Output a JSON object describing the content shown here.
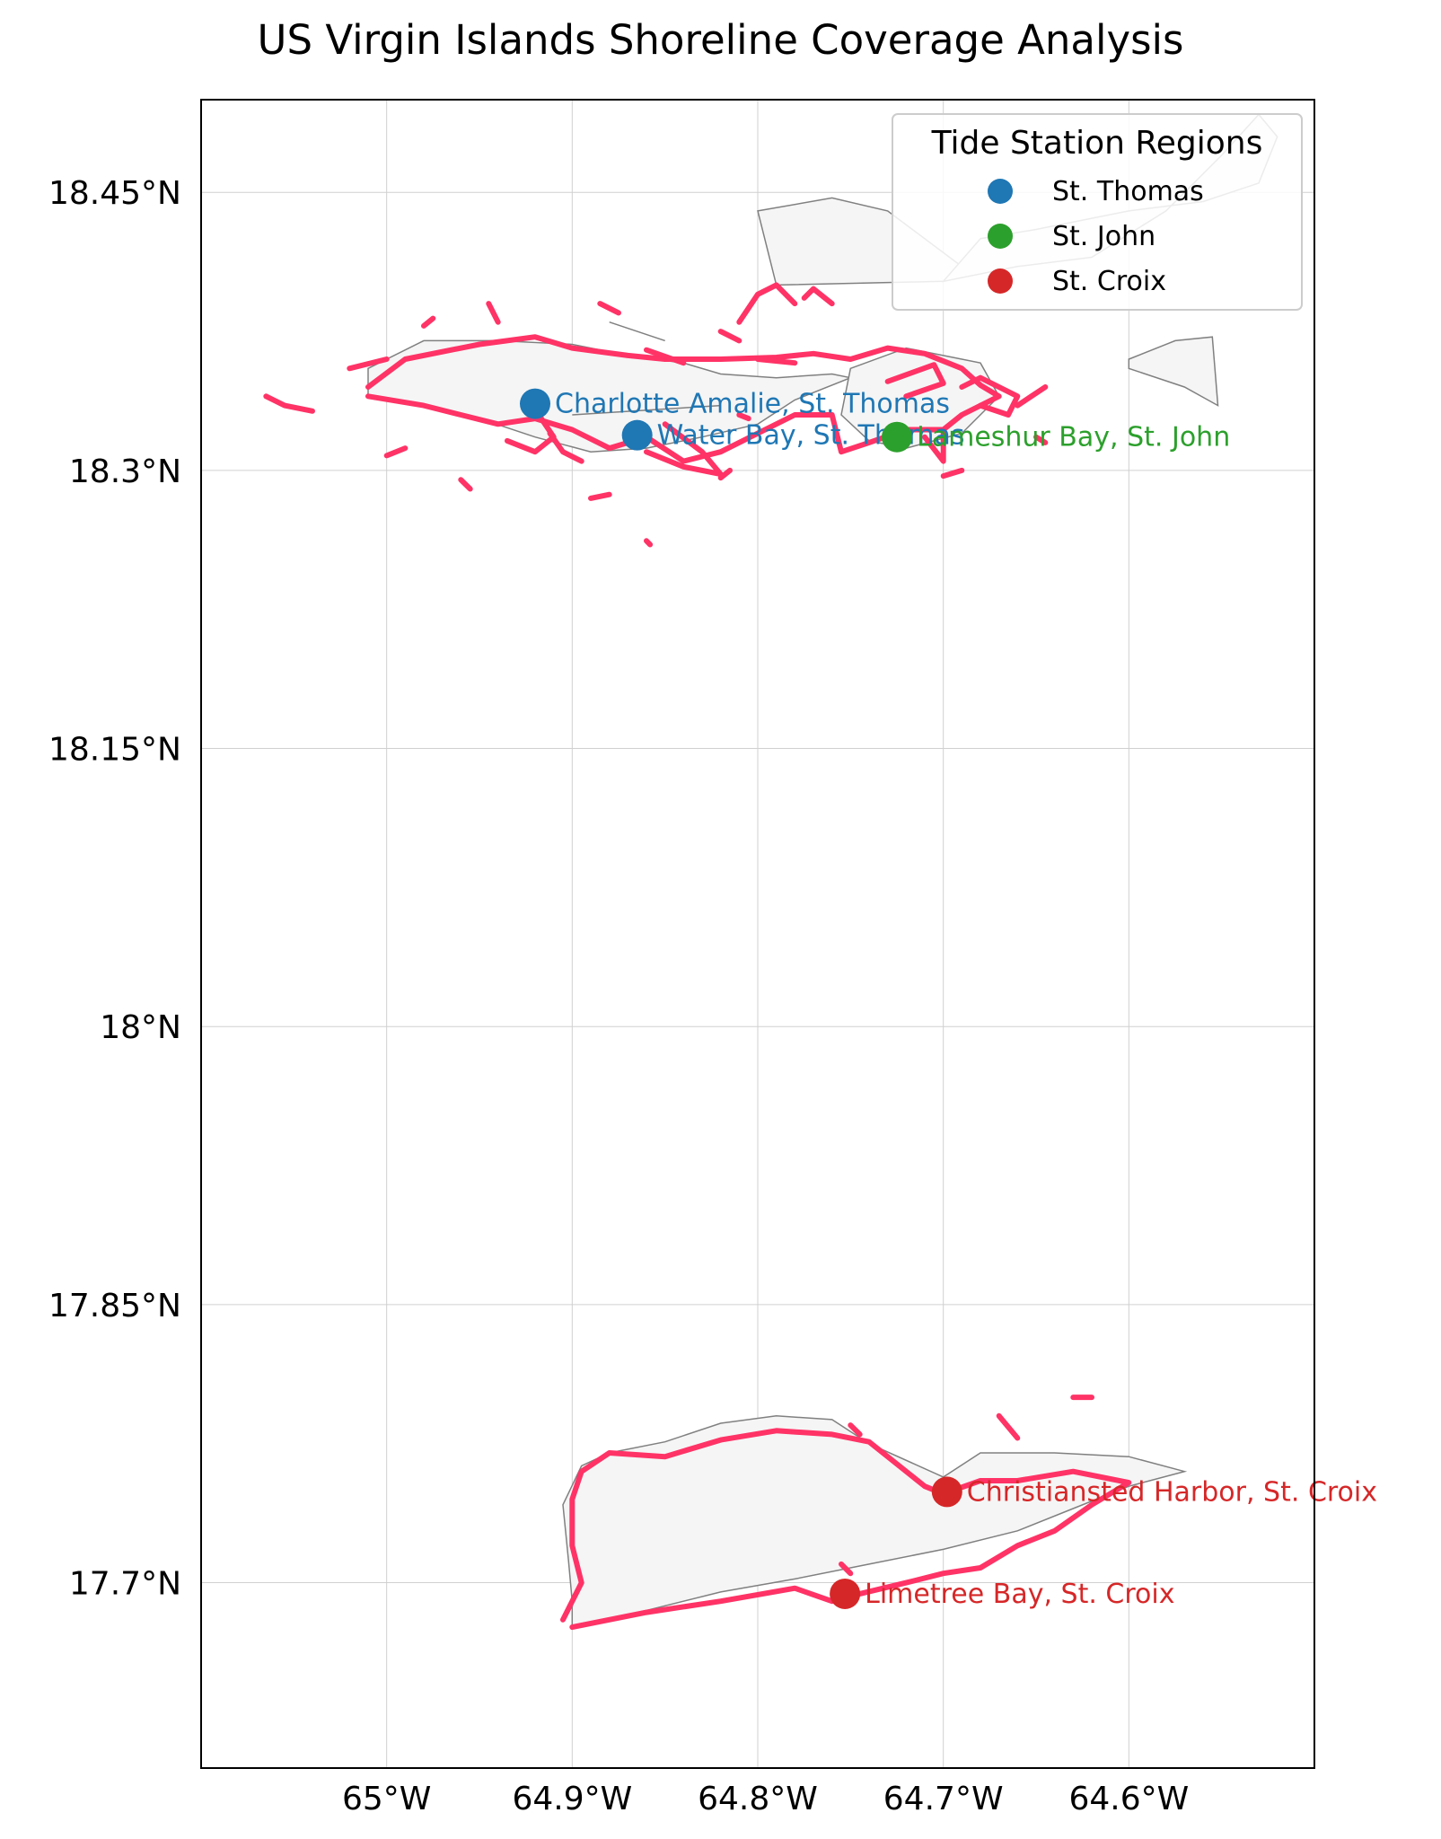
{
  "title": "US Virgin Islands Shoreline Coverage Analysis",
  "colors": {
    "shoreline": "#ff3366",
    "land_fill": "#f5f5f5",
    "land_edge": "#808080",
    "grid": "#d0d0d0"
  },
  "chart_data": {
    "type": "map",
    "title": "US Virgin Islands Shoreline Coverage Analysis",
    "xlim": [
      -65.1,
      -64.5
    ],
    "ylim": [
      17.6,
      18.5
    ],
    "grid": true,
    "x_ticks": [
      {
        "value": -65.0,
        "label": "65°W"
      },
      {
        "value": -64.9,
        "label": "64.9°W"
      },
      {
        "value": -64.8,
        "label": "64.8°W"
      },
      {
        "value": -64.7,
        "label": "64.7°W"
      },
      {
        "value": -64.6,
        "label": "64.6°W"
      }
    ],
    "y_ticks": [
      {
        "value": 18.45,
        "label": "18.45°N"
      },
      {
        "value": 18.3,
        "label": "18.3°N"
      },
      {
        "value": 18.15,
        "label": "18.15°N"
      },
      {
        "value": 18.0,
        "label": "18°N"
      },
      {
        "value": 17.85,
        "label": "17.85°N"
      },
      {
        "value": 17.7,
        "label": "17.7°N"
      }
    ],
    "legend": {
      "title": "Tide Station Regions",
      "placement": "upper-right",
      "entries": [
        {
          "label": "St. Thomas",
          "color": "#1f77b4"
        },
        {
          "label": "St. John",
          "color": "#2ca02c"
        },
        {
          "label": "St. Croix",
          "color": "#d62728"
        }
      ]
    },
    "stations": [
      {
        "name": "Charlotte Amalie, St. Thomas",
        "lon": -64.92,
        "lat": 18.336,
        "region": "St. Thomas",
        "color": "#1f77b4"
      },
      {
        "name": "Water Bay, St. Thomas",
        "lon": -64.865,
        "lat": 18.319,
        "region": "St. Thomas",
        "color": "#1f77b4"
      },
      {
        "name": "Lameshur Bay, St. John",
        "lon": -64.725,
        "lat": 18.318,
        "region": "St. John",
        "color": "#2ca02c"
      },
      {
        "name": "Christiansted Harbor, St. Croix",
        "lon": -64.698,
        "lat": 17.749,
        "region": "St. Croix",
        "color": "#d62728"
      },
      {
        "name": "Limetree Bay, St. Croix",
        "lon": -64.753,
        "lat": 17.694,
        "region": "St. Croix",
        "color": "#d62728"
      }
    ],
    "land": [
      [
        [
          -65.01,
          18.355
        ],
        [
          -64.98,
          18.37
        ],
        [
          -64.94,
          18.37
        ],
        [
          -64.9,
          18.368
        ],
        [
          -64.87,
          18.362
        ],
        [
          -64.84,
          18.358
        ],
        [
          -64.82,
          18.352
        ],
        [
          -64.79,
          18.35
        ],
        [
          -64.76,
          18.352
        ],
        [
          -64.75,
          18.35
        ],
        [
          -64.78,
          18.338
        ],
        [
          -64.8,
          18.325
        ],
        [
          -64.83,
          18.318
        ],
        [
          -64.86,
          18.312
        ],
        [
          -64.89,
          18.31
        ],
        [
          -64.92,
          18.318
        ],
        [
          -64.95,
          18.328
        ],
        [
          -64.98,
          18.335
        ],
        [
          -65.01,
          18.34
        ]
      ],
      [
        [
          -64.75,
          18.355
        ],
        [
          -64.72,
          18.366
        ],
        [
          -64.68,
          18.358
        ],
        [
          -64.67,
          18.34
        ],
        [
          -64.69,
          18.32
        ],
        [
          -64.72,
          18.312
        ],
        [
          -64.74,
          18.316
        ],
        [
          -64.755,
          18.33
        ]
      ],
      [
        [
          -64.9,
          18.33
        ],
        [
          -64.82,
          18.335
        ]
      ],
      [
        [
          -64.88,
          18.38
        ],
        [
          -64.85,
          18.37
        ]
      ],
      [
        [
          -64.79,
          18.4
        ],
        [
          -64.7,
          18.402
        ],
        [
          -64.69,
          18.41
        ],
        [
          -64.73,
          18.44
        ],
        [
          -64.76,
          18.447
        ],
        [
          -64.8,
          18.44
        ]
      ],
      [
        [
          -64.68,
          18.425
        ],
        [
          -64.65,
          18.43
        ],
        [
          -64.6,
          18.44
        ],
        [
          -64.56,
          18.445
        ],
        [
          -64.53,
          18.455
        ],
        [
          -64.52,
          18.48
        ],
        [
          -64.53,
          18.492
        ],
        [
          -64.55,
          18.47
        ],
        [
          -64.58,
          18.44
        ],
        [
          -64.62,
          18.415
        ],
        [
          -64.66,
          18.41
        ],
        [
          -64.7,
          18.402
        ]
      ],
      [
        [
          -64.6,
          18.36
        ],
        [
          -64.575,
          18.37
        ],
        [
          -64.555,
          18.372
        ],
        [
          -64.552,
          18.335
        ],
        [
          -64.57,
          18.345
        ],
        [
          -64.6,
          18.355
        ]
      ],
      [
        [
          -64.9,
          17.676
        ],
        [
          -64.86,
          17.685
        ],
        [
          -64.82,
          17.695
        ],
        [
          -64.78,
          17.702
        ],
        [
          -64.74,
          17.71
        ],
        [
          -64.7,
          17.718
        ],
        [
          -64.66,
          17.728
        ],
        [
          -64.63,
          17.74
        ],
        [
          -64.6,
          17.752
        ],
        [
          -64.57,
          17.76
        ],
        [
          -64.6,
          17.768
        ],
        [
          -64.64,
          17.77
        ],
        [
          -64.68,
          17.77
        ],
        [
          -64.7,
          17.757
        ],
        [
          -64.74,
          17.775
        ],
        [
          -64.76,
          17.788
        ],
        [
          -64.79,
          17.79
        ],
        [
          -64.82,
          17.786
        ],
        [
          -64.85,
          17.776
        ],
        [
          -64.88,
          17.77
        ],
        [
          -64.895,
          17.763
        ],
        [
          -64.905,
          17.742
        ],
        [
          -64.902,
          17.712
        ],
        [
          -64.9,
          17.69
        ]
      ]
    ],
    "shorelines": [
      [
        [
          -65.01,
          18.345
        ],
        [
          -64.99,
          18.36
        ],
        [
          -64.95,
          18.368
        ],
        [
          -64.92,
          18.372
        ],
        [
          -64.9,
          18.366
        ],
        [
          -64.87,
          18.362
        ],
        [
          -64.85,
          18.36
        ],
        [
          -64.82,
          18.36
        ],
        [
          -64.79,
          18.361
        ],
        [
          -64.77,
          18.363
        ],
        [
          -64.75,
          18.36
        ],
        [
          -64.73,
          18.366
        ],
        [
          -64.71,
          18.363
        ],
        [
          -64.69,
          18.355
        ],
        [
          -64.68,
          18.346
        ],
        [
          -64.67,
          18.34
        ],
        [
          -64.69,
          18.33
        ],
        [
          -64.7,
          18.322
        ],
        [
          -64.72,
          18.322
        ],
        [
          -64.74,
          18.315
        ],
        [
          -64.755,
          18.31
        ],
        [
          -64.76,
          18.33
        ],
        [
          -64.78,
          18.33
        ],
        [
          -64.8,
          18.32
        ],
        [
          -64.82,
          18.31
        ],
        [
          -64.84,
          18.305
        ],
        [
          -64.86,
          18.318
        ],
        [
          -64.88,
          18.312
        ],
        [
          -64.9,
          18.322
        ],
        [
          -64.92,
          18.328
        ],
        [
          -64.94,
          18.325
        ],
        [
          -64.96,
          18.33
        ],
        [
          -64.98,
          18.335
        ],
        [
          -65.01,
          18.34
        ]
      ],
      [
        [
          -64.92,
          18.333
        ],
        [
          -64.91,
          18.318
        ],
        [
          -64.92,
          18.31
        ],
        [
          -64.935,
          18.316
        ]
      ],
      [
        [
          -64.85,
          18.325
        ],
        [
          -64.83,
          18.31
        ],
        [
          -64.82,
          18.298
        ],
        [
          -64.84,
          18.302
        ],
        [
          -64.86,
          18.31
        ]
      ],
      [
        [
          -64.73,
          18.348
        ],
        [
          -64.705,
          18.357
        ],
        [
          -64.7,
          18.347
        ],
        [
          -64.72,
          18.34
        ]
      ],
      [
        [
          -64.69,
          18.345
        ],
        [
          -64.68,
          18.35
        ],
        [
          -64.66,
          18.34
        ],
        [
          -64.665,
          18.33
        ],
        [
          -64.68,
          18.335
        ]
      ],
      [
        [
          -64.71,
          18.318
        ],
        [
          -64.7,
          18.305
        ],
        [
          -64.7,
          18.32
        ]
      ],
      [
        [
          -64.81,
          18.38
        ],
        [
          -64.8,
          18.395
        ],
        [
          -64.79,
          18.4
        ],
        [
          -64.78,
          18.39
        ]
      ],
      [
        [
          -64.775,
          18.393
        ],
        [
          -64.77,
          18.398
        ],
        [
          -64.76,
          18.39
        ]
      ],
      [
        [
          -64.82,
          18.375
        ],
        [
          -64.81,
          18.37
        ]
      ],
      [
        [
          -65.0,
          18.36
        ],
        [
          -65.02,
          18.355
        ]
      ],
      [
        [
          -65.04,
          18.332
        ],
        [
          -65.055,
          18.335
        ],
        [
          -65.065,
          18.34
        ]
      ],
      [
        [
          -64.945,
          18.39
        ],
        [
          -64.94,
          18.38
        ]
      ],
      [
        [
          -64.98,
          18.378
        ],
        [
          -64.975,
          18.382
        ]
      ],
      [
        [
          -64.885,
          18.39
        ],
        [
          -64.875,
          18.385
        ]
      ],
      [
        [
          -64.86,
          18.365
        ],
        [
          -64.84,
          18.358
        ]
      ],
      [
        [
          -64.8,
          18.36
        ],
        [
          -64.78,
          18.358
        ]
      ],
      [
        [
          -64.99,
          18.312
        ],
        [
          -65.0,
          18.308
        ]
      ],
      [
        [
          -64.955,
          18.29
        ],
        [
          -64.96,
          18.295
        ]
      ],
      [
        [
          -64.89,
          18.285
        ],
        [
          -64.88,
          18.287
        ]
      ],
      [
        [
          -64.86,
          18.262
        ],
        [
          -64.858,
          18.26
        ]
      ],
      [
        [
          -64.81,
          18.33
        ],
        [
          -64.805,
          18.328
        ]
      ],
      [
        [
          -64.895,
          18.305
        ],
        [
          -64.905,
          18.31
        ],
        [
          -64.912,
          18.32
        ]
      ],
      [
        [
          -64.815,
          18.3
        ],
        [
          -64.82,
          18.296
        ]
      ],
      [
        [
          -64.69,
          18.3
        ],
        [
          -64.7,
          18.297
        ]
      ],
      [
        [
          -64.65,
          18.318
        ],
        [
          -64.645,
          18.315
        ]
      ],
      [
        [
          -64.66,
          18.335
        ],
        [
          -64.645,
          18.345
        ]
      ],
      [
        [
          -64.9,
          17.676
        ],
        [
          -64.86,
          17.684
        ],
        [
          -64.82,
          17.69
        ],
        [
          -64.78,
          17.697
        ],
        [
          -64.76,
          17.69
        ],
        [
          -64.745,
          17.694
        ],
        [
          -64.72,
          17.7
        ],
        [
          -64.7,
          17.705
        ],
        [
          -64.68,
          17.708
        ],
        [
          -64.66,
          17.72
        ],
        [
          -64.64,
          17.728
        ],
        [
          -64.62,
          17.742
        ],
        [
          -64.6,
          17.754
        ],
        [
          -64.63,
          17.76
        ],
        [
          -64.66,
          17.755
        ],
        [
          -64.68,
          17.755
        ],
        [
          -64.7,
          17.748
        ],
        [
          -64.71,
          17.752
        ],
        [
          -64.73,
          17.768
        ],
        [
          -64.74,
          17.776
        ],
        [
          -64.76,
          17.78
        ],
        [
          -64.79,
          17.782
        ],
        [
          -64.82,
          17.777
        ],
        [
          -64.85,
          17.768
        ],
        [
          -64.88,
          17.77
        ],
        [
          -64.895,
          17.76
        ],
        [
          -64.9,
          17.745
        ],
        [
          -64.9,
          17.72
        ],
        [
          -64.895,
          17.7
        ],
        [
          -64.905,
          17.68
        ]
      ],
      [
        [
          -64.75,
          17.705
        ],
        [
          -64.755,
          17.71
        ]
      ],
      [
        [
          -64.66,
          17.778
        ],
        [
          -64.67,
          17.79
        ]
      ],
      [
        [
          -64.63,
          17.8
        ],
        [
          -64.62,
          17.8
        ]
      ],
      [
        [
          -64.745,
          17.78
        ],
        [
          -64.75,
          17.785
        ]
      ]
    ]
  }
}
